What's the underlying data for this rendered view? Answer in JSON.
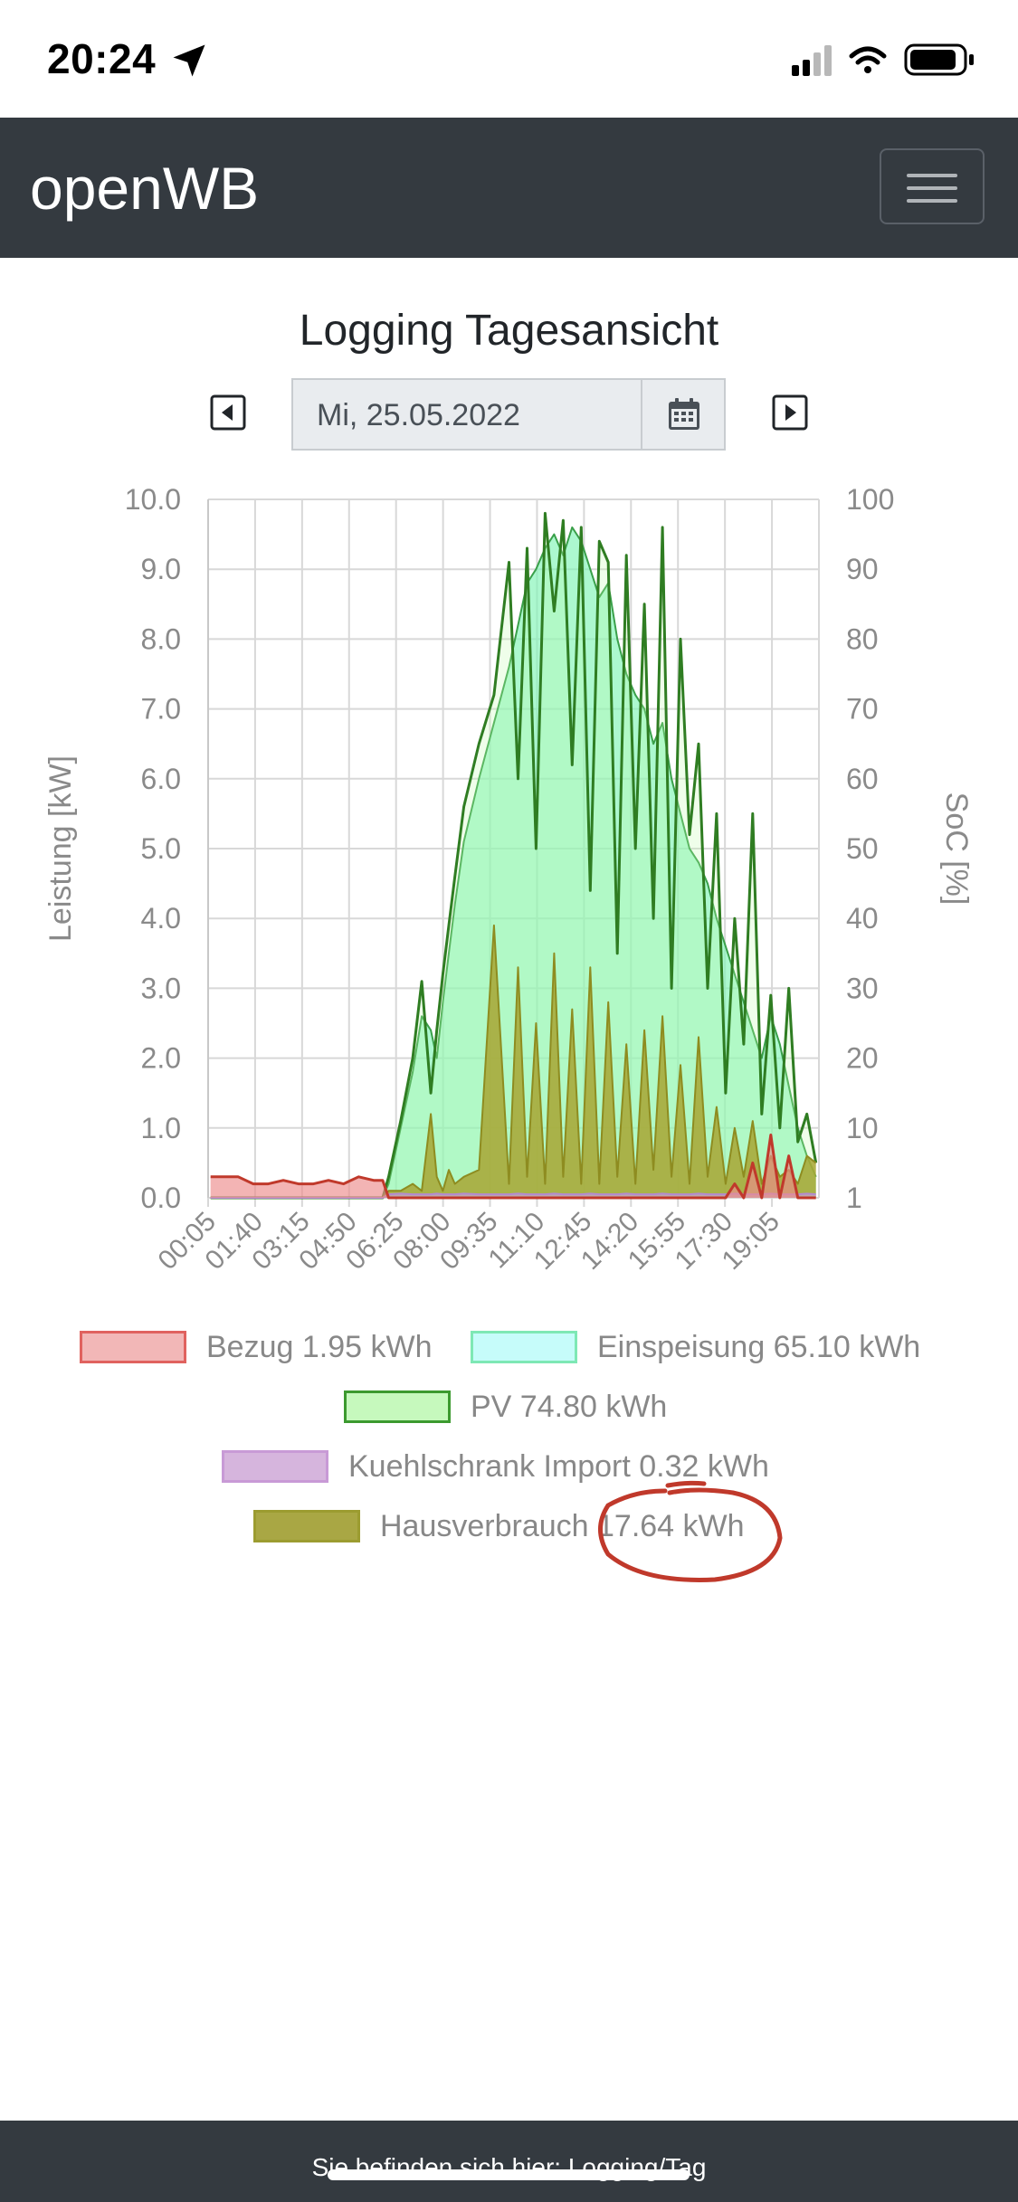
{
  "status_bar": {
    "time": "20:24"
  },
  "navbar": {
    "brand": "openWB"
  },
  "page": {
    "title": "Logging Tagesansicht",
    "date": "Mi, 25.05.2022"
  },
  "icons": {
    "prev": "caret-left-icon",
    "next": "caret-right-icon",
    "calendar": "calendar-icon",
    "menu": "hamburger-menu-icon"
  },
  "chart_data": {
    "type": "area",
    "y_left_label": "Leistung [kW]",
    "y_right_label": "SoC [%]",
    "ylim": [
      0,
      10
    ],
    "ylim_right": [
      0,
      100
    ],
    "y_ticks": [
      "10.0",
      "9.0",
      "8.0",
      "7.0",
      "6.0",
      "5.0",
      "4.0",
      "3.0",
      "2.0",
      "1.0",
      "0.0"
    ],
    "y_right_ticks": [
      "100",
      "90",
      "80",
      "70",
      "60",
      "50",
      "40",
      "30",
      "20",
      "10",
      "1"
    ],
    "x_ticks": [
      "00:05",
      "01:40",
      "03:15",
      "04:50",
      "06:25",
      "08:00",
      "09:35",
      "11:10",
      "12:45",
      "14:20",
      "15:55",
      "17:30",
      "19:05"
    ],
    "grid": true,
    "x_hours": [
      0.08,
      1.0,
      1.5,
      2.0,
      2.5,
      3.0,
      3.5,
      4.0,
      4.5,
      5.0,
      5.5,
      5.8,
      6.0,
      6.4,
      6.8,
      7.1,
      7.4,
      7.6,
      7.8,
      8.0,
      8.2,
      8.5,
      9.0,
      9.5,
      10.0,
      10.3,
      10.6,
      10.9,
      11.2,
      11.5,
      11.8,
      12.1,
      12.4,
      12.7,
      13.0,
      13.3,
      13.6,
      13.9,
      14.2,
      14.5,
      14.8,
      15.1,
      15.4,
      15.7,
      16.0,
      16.3,
      16.6,
      16.9,
      17.2,
      17.5,
      17.8,
      18.1,
      18.4,
      18.7,
      19.0,
      19.3,
      19.6,
      19.9,
      20.2
    ],
    "series": [
      {
        "name": "Bezug",
        "values": [
          0.3,
          0.3,
          0.2,
          0.2,
          0.25,
          0.2,
          0.2,
          0.25,
          0.2,
          0.3,
          0.25,
          0.25,
          0.0,
          0.0,
          0.0,
          0.0,
          0.0,
          0.0,
          0.0,
          0.0,
          0.0,
          0.0,
          0.0,
          0.0,
          0.0,
          0.0,
          0.0,
          0.0,
          0.0,
          0.0,
          0.0,
          0.0,
          0.0,
          0.0,
          0.0,
          0.0,
          0.0,
          0.0,
          0.0,
          0.0,
          0.0,
          0.0,
          0.0,
          0.0,
          0.0,
          0.0,
          0.0,
          0.0,
          0.0,
          0.2,
          0.0,
          0.5,
          0.0,
          0.9,
          0.0,
          0.6,
          0.0,
          0.0,
          0.0
        ]
      },
      {
        "name": "Einspeisung",
        "values": [
          0.0,
          0.0,
          0.0,
          0.0,
          0.0,
          0.0,
          0.0,
          0.0,
          0.0,
          0.0,
          0.0,
          0.0,
          0.2,
          1.0,
          1.8,
          2.6,
          2.4,
          2.0,
          2.8,
          3.5,
          4.2,
          5.1,
          6.0,
          6.8,
          7.6,
          8.2,
          8.8,
          9.0,
          9.3,
          9.5,
          9.2,
          9.6,
          9.4,
          9.0,
          8.6,
          8.8,
          8.0,
          7.5,
          7.2,
          7.0,
          6.5,
          6.8,
          6.0,
          5.5,
          5.0,
          4.8,
          4.5,
          4.0,
          3.6,
          3.2,
          2.8,
          2.4,
          2.0,
          2.6,
          2.2,
          1.6,
          1.0,
          0.6,
          0.3
        ]
      },
      {
        "name": "PV",
        "values": [
          0.0,
          0.0,
          0.0,
          0.0,
          0.0,
          0.0,
          0.0,
          0.0,
          0.0,
          0.0,
          0.0,
          0.0,
          0.3,
          1.1,
          2.0,
          3.1,
          1.5,
          2.4,
          3.2,
          3.9,
          4.6,
          5.6,
          6.5,
          7.2,
          9.1,
          6.0,
          9.3,
          5.0,
          9.8,
          8.4,
          9.7,
          6.2,
          9.6,
          4.4,
          9.4,
          9.1,
          3.5,
          9.2,
          5.0,
          8.5,
          4.0,
          9.6,
          3.0,
          8.0,
          5.2,
          6.5,
          3.0,
          5.5,
          1.5,
          4.0,
          2.2,
          5.5,
          1.2,
          2.9,
          1.0,
          3.0,
          0.8,
          1.2,
          0.5
        ]
      },
      {
        "name": "Kuehlschrank Import",
        "values": [
          0.0,
          0.0,
          0.0,
          0.0,
          0.0,
          0.0,
          0.0,
          0.0,
          0.0,
          0.0,
          0.0,
          0.0,
          0.05,
          0.06,
          0.05,
          0.05,
          0.05,
          0.06,
          0.05,
          0.05,
          0.05,
          0.06,
          0.05,
          0.05,
          0.05,
          0.06,
          0.05,
          0.05,
          0.05,
          0.06,
          0.05,
          0.05,
          0.05,
          0.06,
          0.05,
          0.05,
          0.05,
          0.06,
          0.05,
          0.05,
          0.05,
          0.06,
          0.05,
          0.05,
          0.05,
          0.06,
          0.05,
          0.05,
          0.05,
          0.06,
          0.05,
          0.05,
          0.05,
          0.06,
          0.05,
          0.05,
          0.05,
          0.06,
          0.05
        ]
      },
      {
        "name": "Hausverbrauch",
        "values": [
          0.0,
          0.0,
          0.0,
          0.0,
          0.0,
          0.0,
          0.0,
          0.0,
          0.0,
          0.0,
          0.0,
          0.0,
          0.1,
          0.1,
          0.2,
          0.1,
          1.2,
          0.3,
          0.1,
          0.4,
          0.2,
          0.3,
          0.4,
          3.9,
          0.2,
          3.3,
          0.3,
          2.5,
          0.2,
          3.5,
          0.3,
          2.7,
          0.2,
          3.3,
          0.2,
          2.8,
          0.3,
          2.2,
          0.2,
          2.4,
          0.4,
          2.6,
          0.3,
          1.9,
          0.2,
          2.3,
          0.3,
          1.3,
          0.2,
          1.0,
          0.3,
          1.1,
          0.2,
          0.6,
          0.3,
          0.4,
          0.2,
          0.6,
          0.5
        ]
      }
    ],
    "colors": {
      "Bezug": "#e36a6a",
      "Einspeisung": "#7ff5b5",
      "PV": "#3a8a2a",
      "Kuehlschrank Import": "#c5a3d6",
      "Hausverbrauch": "#a8a632"
    }
  },
  "legend": [
    {
      "label": "Bezug 1.95 kWh",
      "fill": "#f2b7b7",
      "border": "#e0625f"
    },
    {
      "label": "Einspeisung 65.10 kWh",
      "fill": "#c6fcfa",
      "border": "#7ee8b5"
    },
    {
      "label": "PV 74.80 kWh",
      "fill": "#c6f9bd",
      "border": "#3c9a2f"
    },
    {
      "label": "Kuehlschrank Import 0.32 kWh",
      "fill": "#d6b5dd",
      "border": "#c89ad6"
    },
    {
      "label": "Hausverbrauch 17.64 kWh",
      "fill": "#a9a744",
      "border": "#9c9c30"
    }
  ],
  "footer": {
    "text": "Sie befinden sich hier: Logging/Tag"
  }
}
